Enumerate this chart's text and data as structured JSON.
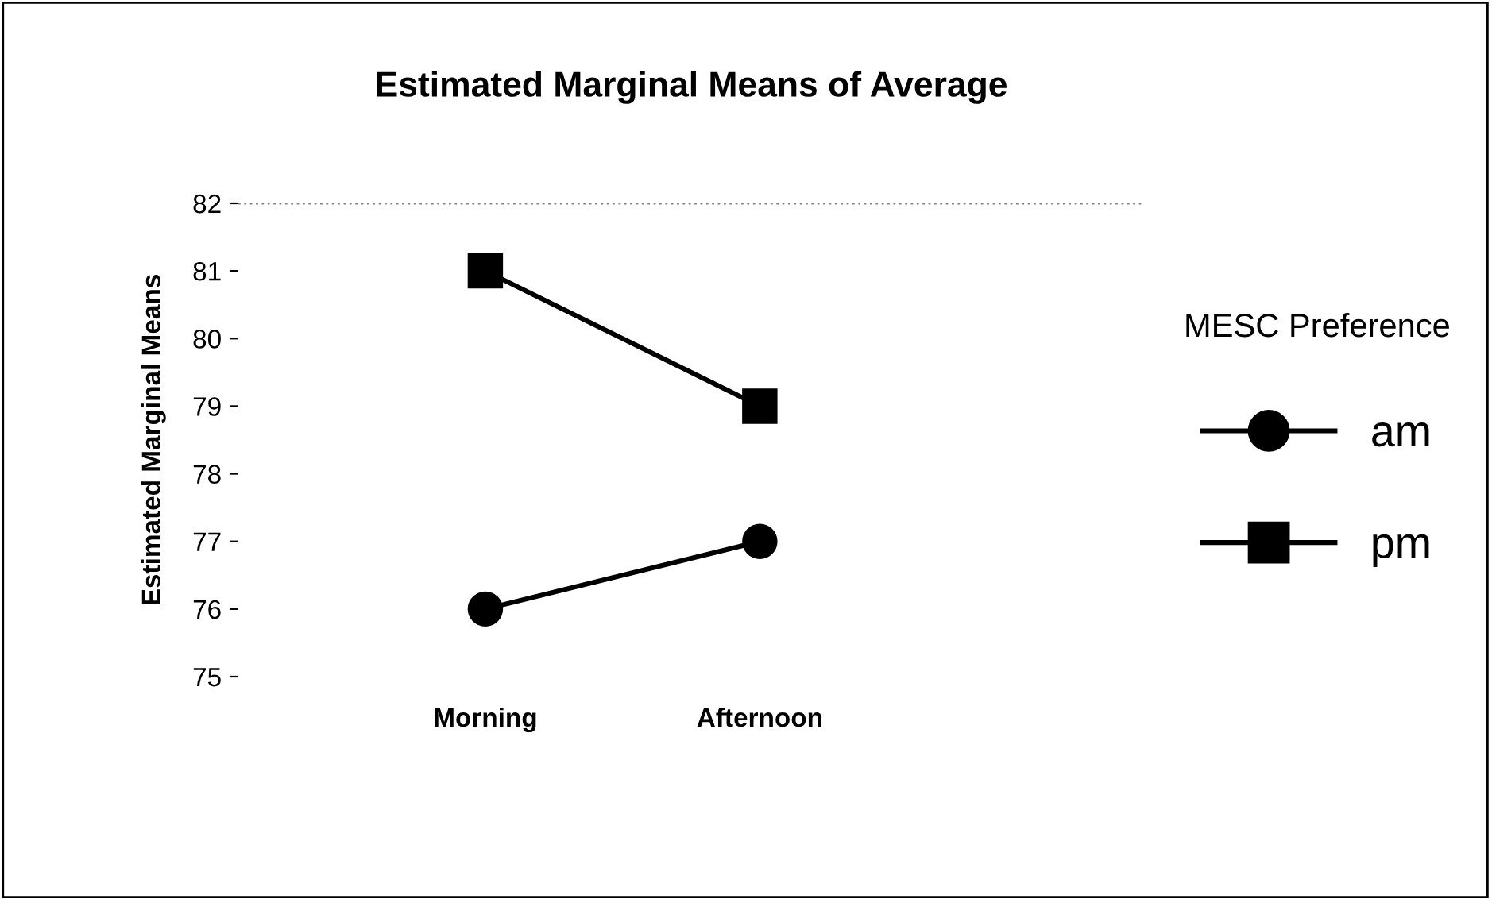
{
  "chart_data": {
    "type": "line",
    "title": "Estimated Marginal Means of Average",
    "ylabel": "Estimated Marginal Means",
    "legend_title": "MESC Preference",
    "categories": [
      "Morning",
      "Afternoon"
    ],
    "series": [
      {
        "name": "am",
        "color": "#000000",
        "marker": "circle",
        "values": [
          76,
          77
        ]
      },
      {
        "name": "pm",
        "color": "#000000",
        "marker": "square",
        "values": [
          81,
          79
        ]
      }
    ],
    "ylim": [
      75,
      82
    ],
    "yticks": [
      75,
      76,
      77,
      78,
      79,
      80,
      81,
      82
    ],
    "ref_lines": [
      {
        "axis": "y",
        "value": 82,
        "label": null,
        "color": "#808080",
        "line_style": "dotted"
      }
    ],
    "grid": false,
    "legend": "right",
    "line_style": "solid"
  }
}
